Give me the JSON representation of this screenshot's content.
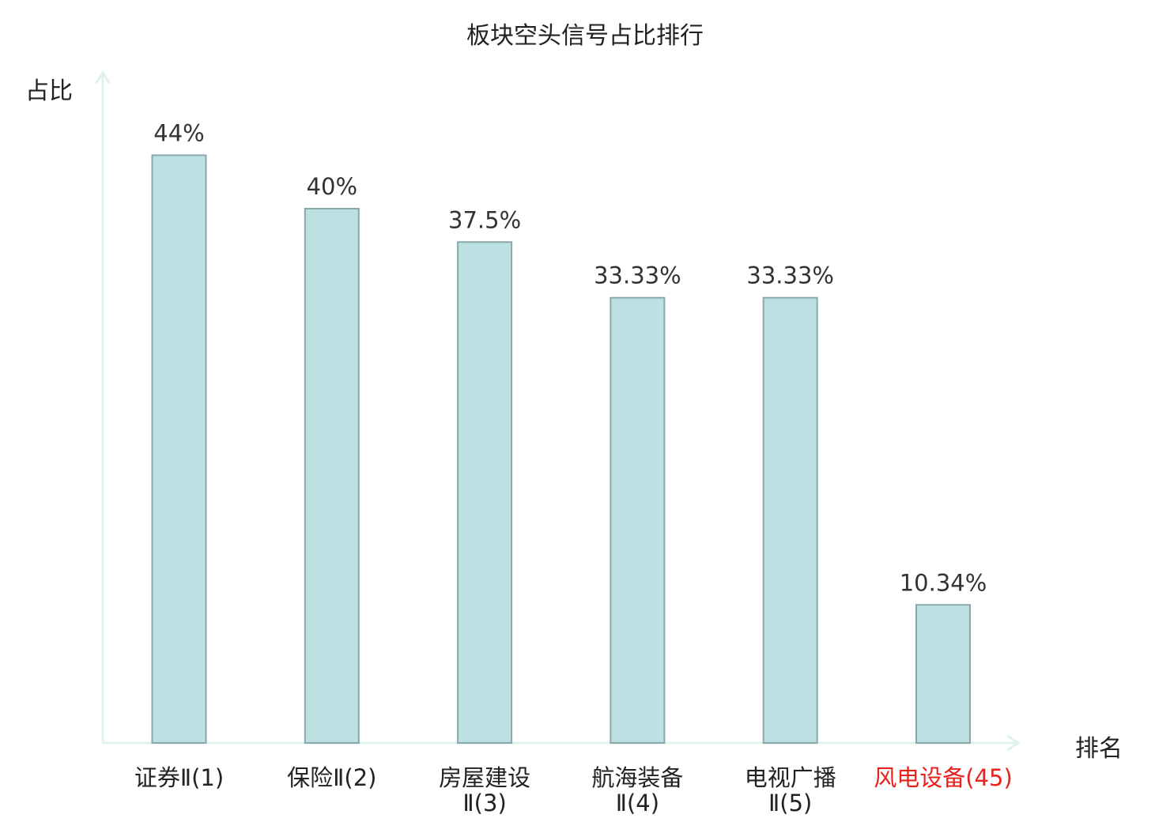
{
  "chart_data": {
    "type": "bar",
    "title": "板块空头信号占比排行",
    "ylabel": "占比",
    "xlabel": "排名",
    "categories": [
      {
        "line1": "证券Ⅱ(1)",
        "line2": "",
        "highlight": false
      },
      {
        "line1": "保险Ⅱ(2)",
        "line2": "",
        "highlight": false
      },
      {
        "line1": "房屋建设",
        "line2": "Ⅱ(3)",
        "highlight": false
      },
      {
        "line1": "航海装备",
        "line2": "Ⅱ(4)",
        "highlight": false
      },
      {
        "line1": "电视广播",
        "line2": "Ⅱ(5)",
        "highlight": false
      },
      {
        "line1": "风电设备(45)",
        "line2": "",
        "highlight": true
      }
    ],
    "values": [
      44,
      40,
      37.5,
      33.33,
      33.33,
      10.34
    ],
    "value_labels": [
      "44%",
      "40%",
      "37.5%",
      "33.33%",
      "33.33%",
      "10.34%"
    ],
    "ylim": [
      0,
      50
    ],
    "grid": false,
    "colors": {
      "bar_fill": "#bde0e3",
      "bar_stroke": "#8aa8ab",
      "axis": "#e0f2f0",
      "text": "#222222",
      "value_text": "#333333",
      "highlight": "#e8211c"
    }
  }
}
